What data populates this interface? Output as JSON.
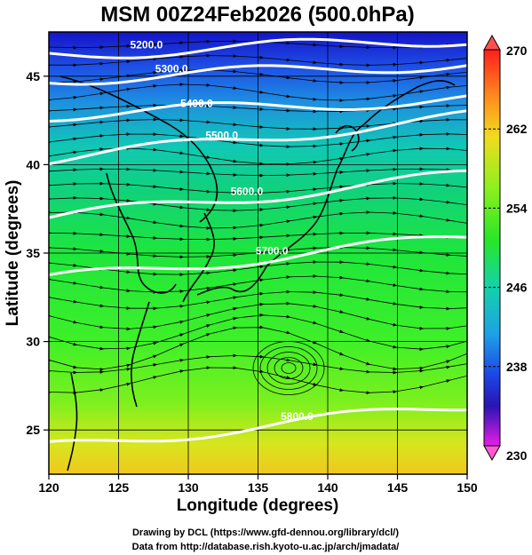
{
  "chart_data": {
    "type": "heatmap",
    "title": "MSM 00Z24Feb2026 (500.0hPa)",
    "xlabel": "Longitude (degrees)",
    "ylabel": "Latitude  (degrees)",
    "xlim": [
      120,
      150
    ],
    "ylim": [
      22.5,
      47.5
    ],
    "x_ticks": [
      "120",
      "125",
      "130",
      "135",
      "140",
      "145",
      "150"
    ],
    "y_ticks": [
      "25",
      "30",
      "35",
      "40",
      "45"
    ],
    "grid": true,
    "colorbar": {
      "min": 230,
      "max": 270,
      "tick_labels": [
        "270",
        "262",
        "254",
        "246",
        "238",
        "230"
      ],
      "orientation": "vertical",
      "placement": "right"
    },
    "contours": [
      {
        "value": "5200.0",
        "label": "5200.0"
      },
      {
        "value": "5300.0",
        "label": "5300.0"
      },
      {
        "value": "5400.0",
        "label": "5400.0"
      },
      {
        "value": "5500.0",
        "label": "5500.0"
      },
      {
        "value": "5600.0",
        "label": "5600.0"
      },
      {
        "value": "5700.0",
        "label": "5700.0"
      },
      {
        "value": "5800.0",
        "label": "5800.0"
      }
    ],
    "overlays": [
      "temperature shading",
      "geopotential height contours",
      "wind streamlines",
      "coastlines"
    ]
  },
  "credits": {
    "line1": "Drawing by DCL (https://www.gfd-dennou.org/library/dcl/)",
    "line2": "Data from http://database.rish.kyoto-u.ac.jp/arch/jmadata/"
  }
}
